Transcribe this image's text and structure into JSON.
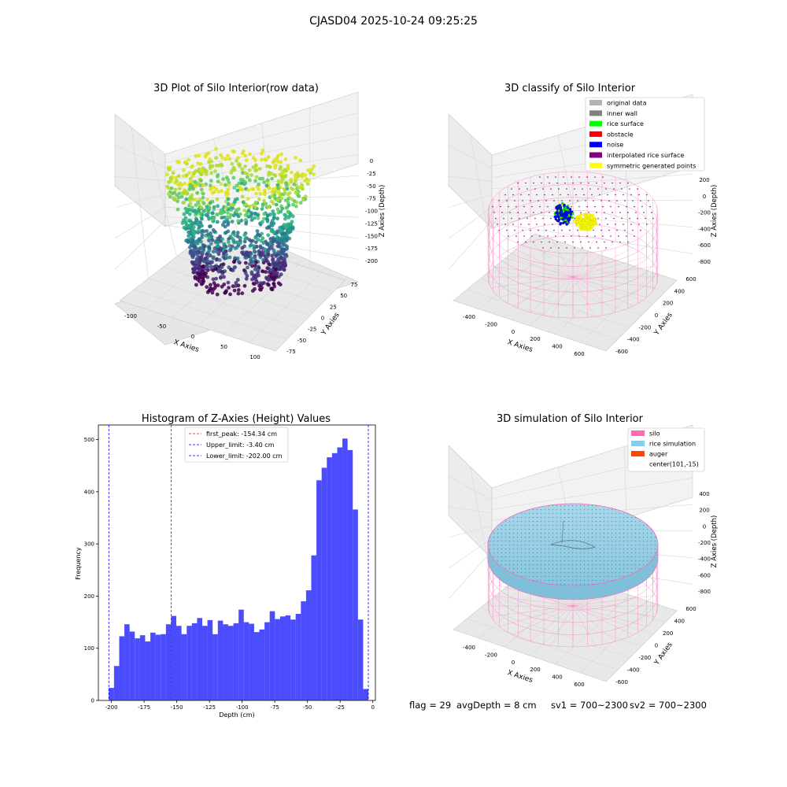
{
  "suptitle": "CJASD04 2025-10-24 09:25:25",
  "status_line": {
    "flag": "flag = 29",
    "avg_depth": "avgDepth = 8 cm",
    "sv1": "sv1 = 700~2300",
    "sv2": "sv2 = 700~2300"
  },
  "chart_data": [
    {
      "type": "scatter",
      "projection": "3d",
      "title": "3D Plot of Silo Interior(row data)",
      "xlabel": "X Axies",
      "ylabel": "Y Axies",
      "zlabel": "Z Axies (Depth)",
      "x_ticks": [
        "-100",
        "-50",
        "0",
        "50",
        "100"
      ],
      "y_ticks": [
        "-75",
        "-50",
        "-25",
        "0",
        "25",
        "50",
        "75"
      ],
      "z_ticks": [
        "0",
        "-25",
        "-50",
        "-75",
        "-100",
        "-125",
        "-150",
        "-175",
        "-200"
      ],
      "xlim": [
        -120,
        120
      ],
      "ylim": [
        -90,
        90
      ],
      "zlim": [
        -210,
        5
      ],
      "colormap": "viridis",
      "grid": true
    },
    {
      "type": "scatter",
      "projection": "3d",
      "title": "3D classify of Silo Interior",
      "xlabel": "X Axies",
      "ylabel": "Y Axies",
      "zlabel": "Z Axies (Depth)",
      "x_ticks": [
        "-400",
        "-200",
        "0",
        "200",
        "400",
        "600"
      ],
      "y_ticks": [
        "-600",
        "-400",
        "-200",
        "0",
        "200",
        "400",
        "600"
      ],
      "z_ticks": [
        "200",
        "0",
        "-200",
        "-400",
        "-600",
        "-800"
      ],
      "legend_position": "upper-right",
      "legend": [
        {
          "label": "original data",
          "color": "#b3b3b3"
        },
        {
          "label": "inner wall",
          "color": "#808080"
        },
        {
          "label": "rice surface",
          "color": "#00ff00"
        },
        {
          "label": "obstacle",
          "color": "#ff0000"
        },
        {
          "label": "noise",
          "color": "#0000ff"
        },
        {
          "label": "interpolated rice surface",
          "color": "#800080"
        },
        {
          "label": "symmetric generated points",
          "color": "#ffff00"
        }
      ],
      "grid": true
    },
    {
      "type": "bar",
      "title": "Histogram of Z-Axies (Height) Values",
      "xlabel": "Depth (cm)",
      "ylabel": "Frequency",
      "bar_color": "#0000ff",
      "bar_alpha": 0.7,
      "x_ticks": [
        -200,
        -175,
        -150,
        -125,
        -100,
        -75,
        -50,
        -25,
        0
      ],
      "y_ticks": [
        0,
        100,
        200,
        300,
        400,
        500
      ],
      "xlim": [
        -210,
        2
      ],
      "ylim": [
        0,
        528
      ],
      "bin_range": [
        -202.0,
        -3.4
      ],
      "values": [
        24,
        66,
        123,
        146,
        132,
        119,
        125,
        113,
        130,
        126,
        127,
        146,
        162,
        143,
        127,
        143,
        148,
        158,
        143,
        154,
        127,
        153,
        146,
        143,
        148,
        174,
        150,
        147,
        131,
        136,
        150,
        171,
        156,
        161,
        163,
        155,
        166,
        190,
        211,
        278,
        422,
        446,
        466,
        474,
        485,
        502,
        480,
        366,
        155,
        22
      ],
      "vlines": [
        {
          "label": "first_peak: -154.34 cm",
          "x": -154.34,
          "color": "#ff0000"
        },
        {
          "label": "Upper_limit: -3.40 cm",
          "x": -3.4,
          "color": "#0000ff"
        },
        {
          "label": "Lower_limit: -202.00 cm",
          "x": -202.0,
          "color": "#0000ff"
        }
      ],
      "legend_position": "upper-center"
    },
    {
      "type": "surface",
      "projection": "3d",
      "title": "3D simulation of Silo Interior",
      "xlabel": "X Axies",
      "ylabel": "Y Axies",
      "zlabel": "Z Axies (Depth)",
      "x_ticks": [
        "-400",
        "-200",
        "0",
        "200",
        "400",
        "600"
      ],
      "y_ticks": [
        "-600",
        "-400",
        "-200",
        "0",
        "200",
        "400",
        "600"
      ],
      "z_ticks": [
        "400",
        "200",
        "0",
        "-200",
        "-400",
        "-600",
        "-800"
      ],
      "legend_position": "upper-right",
      "legend": [
        {
          "label": "silo",
          "color": "#ff69b4"
        },
        {
          "label": "rice simulation",
          "color": "#87ceeb"
        },
        {
          "label": "auger",
          "color": "#ff4500"
        },
        {
          "label": "center(101,-15)",
          "color": ""
        }
      ],
      "grid": true
    }
  ]
}
